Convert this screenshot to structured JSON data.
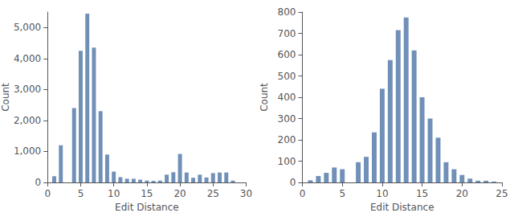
{
  "chart_data": [
    {
      "type": "bar",
      "x": [
        1,
        2,
        3,
        4,
        5,
        6,
        7,
        8,
        9,
        10,
        11,
        12,
        13,
        14,
        15,
        16,
        17,
        18,
        19,
        20,
        21,
        22,
        23,
        24,
        25,
        26,
        27,
        28
      ],
      "values": [
        200,
        1200,
        0,
        2400,
        4250,
        5450,
        4350,
        2300,
        900,
        350,
        170,
        120,
        120,
        90,
        60,
        50,
        60,
        250,
        330,
        920,
        320,
        150,
        250,
        160,
        300,
        320,
        320,
        60
      ],
      "color": "#7090b8",
      "xlim": [
        0,
        30
      ],
      "xticks": [
        0,
        5,
        10,
        15,
        20,
        25,
        30
      ],
      "ylim": [
        0,
        5500
      ],
      "yticks": [
        0,
        1000,
        2000,
        3000,
        4000,
        5000
      ],
      "xlabel": "Edit Distance",
      "ylabel": "Count",
      "grid": false
    },
    {
      "type": "bar",
      "x": [
        1,
        2,
        3,
        4,
        5,
        6,
        7,
        8,
        9,
        10,
        11,
        12,
        13,
        14,
        15,
        16,
        17,
        18,
        19,
        20,
        21,
        22,
        23,
        24
      ],
      "values": [
        10,
        30,
        45,
        70,
        62,
        0,
        95,
        120,
        235,
        440,
        575,
        715,
        775,
        620,
        400,
        300,
        210,
        95,
        62,
        35,
        18,
        8,
        8,
        4
      ],
      "color": "#7090b8",
      "xlim": [
        0,
        25
      ],
      "xticks": [
        0,
        5,
        10,
        15,
        20,
        25
      ],
      "ylim": [
        0,
        800
      ],
      "yticks": [
        0,
        100,
        200,
        300,
        400,
        500,
        600,
        700,
        800
      ],
      "xlabel": "Edit Distance",
      "ylabel": "Count",
      "grid": false
    }
  ]
}
